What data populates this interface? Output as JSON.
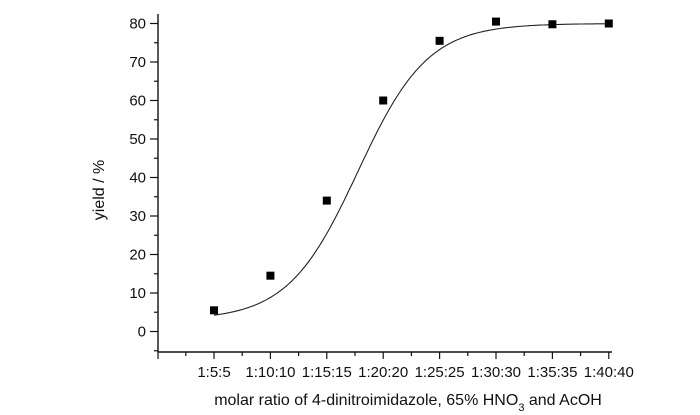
{
  "chart_data": {
    "type": "scatter",
    "title": "",
    "xlabel": {
      "prefix": "molar ratio of 4-dinitroimidazole, 65% HNO",
      "subscript": "3",
      "suffix": " and AcOH"
    },
    "ylabel": "yield / %",
    "categories": [
      "1:5:5",
      "1:10:10",
      "1:15:15",
      "1:20:20",
      "1:25:25",
      "1:30:30",
      "1:35:35",
      "1:40:40"
    ],
    "ylim": [
      -5,
      82
    ],
    "yticks": [
      0,
      10,
      20,
      30,
      40,
      50,
      60,
      70,
      80
    ],
    "grid": false,
    "series": [
      {
        "marker": "square",
        "color": "#000000",
        "values": [
          5.5,
          14.5,
          34,
          60,
          75.5,
          80.5,
          79.8,
          80
        ]
      }
    ],
    "fit_curve": {
      "type": "sigmoid",
      "color": "#222222"
    }
  }
}
